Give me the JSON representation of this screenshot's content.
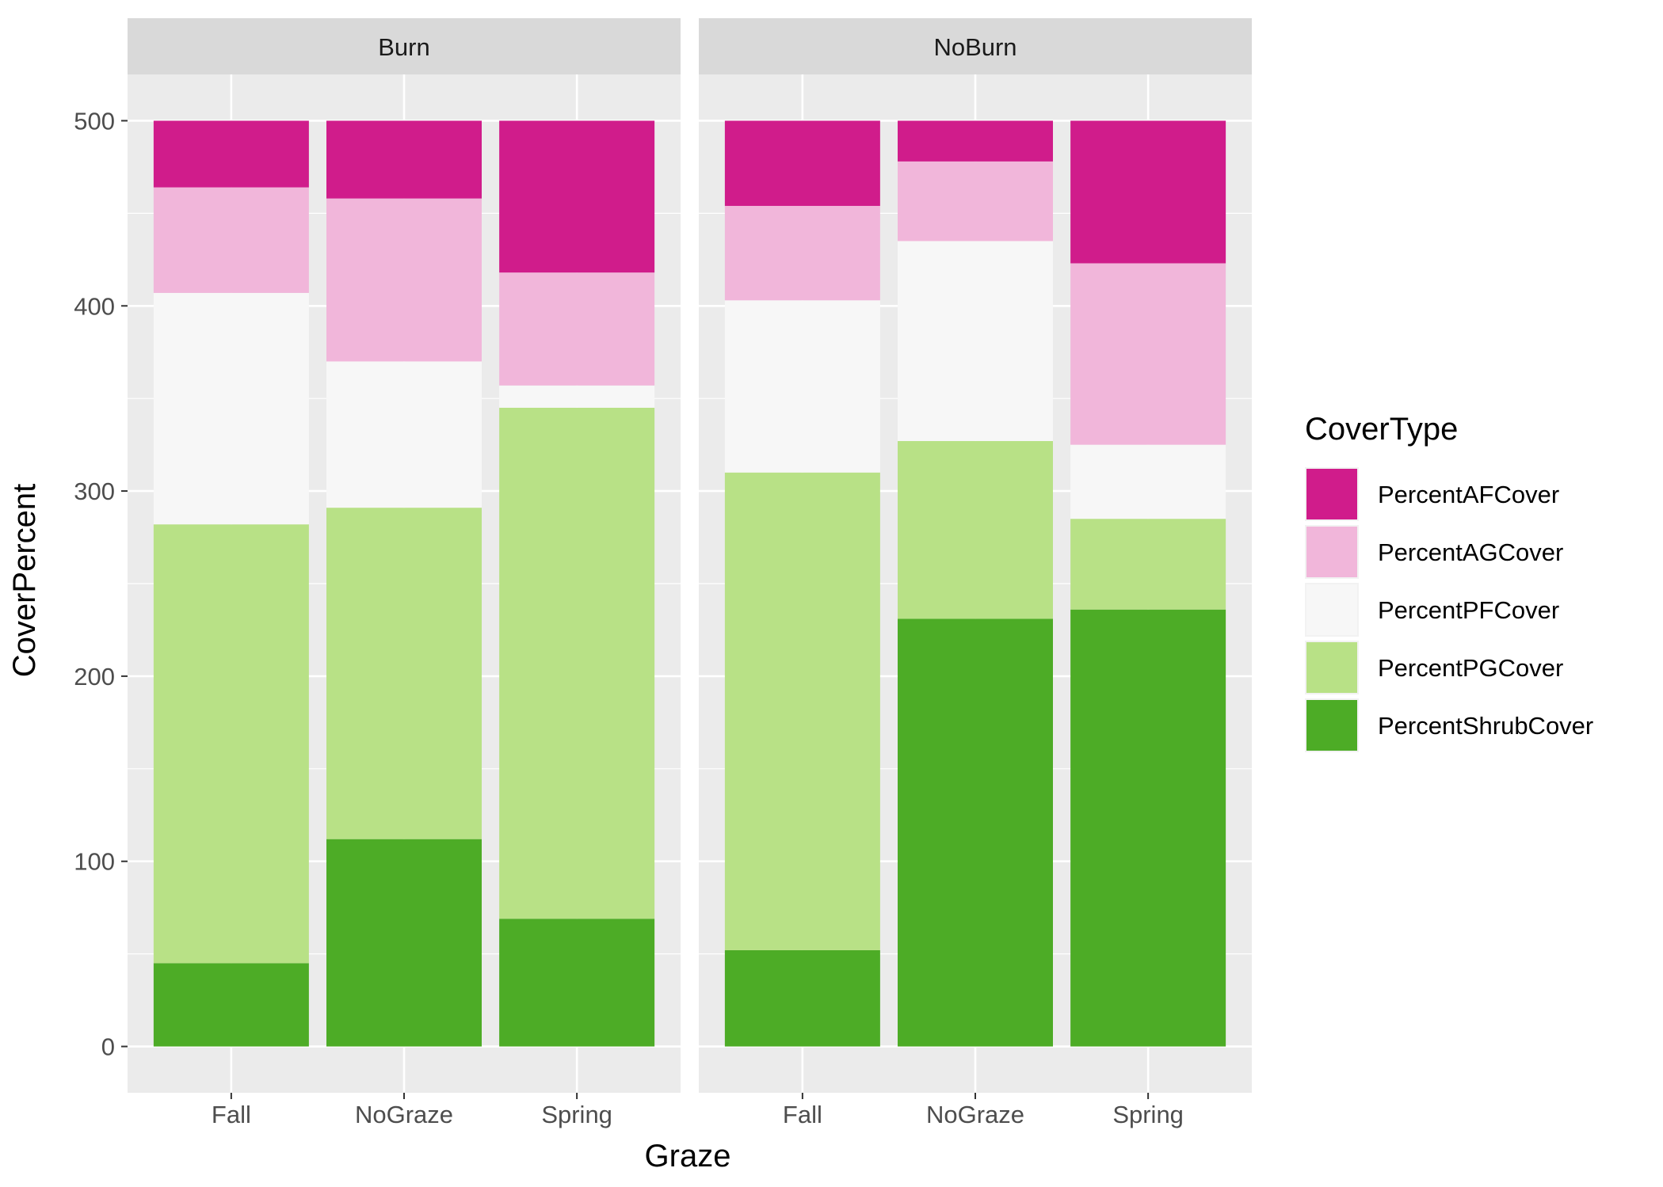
{
  "chart_data": {
    "type": "bar",
    "stacked": true,
    "facet_variable": "Burn",
    "facets": [
      "Burn",
      "NoBurn"
    ],
    "categories": [
      "Fall",
      "NoGraze",
      "Spring"
    ],
    "xlabel": "Graze",
    "ylabel": "CoverPercent",
    "ylim": [
      -25,
      525
    ],
    "yticks": [
      0,
      100,
      200,
      300,
      400,
      500
    ],
    "grid": true,
    "legend": {
      "title": "CoverType",
      "position": "right",
      "entries": [
        "PercentAFCover",
        "PercentAGCover",
        "PercentPFCover",
        "PercentPGCover",
        "PercentShrubCover"
      ]
    },
    "colors": {
      "PercentAFCover": "#d01c8b",
      "PercentAGCover": "#f1b6da",
      "PercentPFCover": "#f7f7f7",
      "PercentPGCover": "#b8e186",
      "PercentShrubCover": "#4dac26"
    },
    "panel_background": "#ebebeb",
    "strip_background": "#d9d9d9",
    "data": {
      "Burn": {
        "Fall": {
          "PercentShrubCover": 45,
          "PercentPGCover": 237,
          "PercentPFCover": 125,
          "PercentAGCover": 57,
          "PercentAFCover": 36
        },
        "NoGraze": {
          "PercentShrubCover": 112,
          "PercentPGCover": 179,
          "PercentPFCover": 79,
          "PercentAGCover": 88,
          "PercentAFCover": 42
        },
        "Spring": {
          "PercentShrubCover": 69,
          "PercentPGCover": 276,
          "PercentPFCover": 12,
          "PercentAGCover": 61,
          "PercentAFCover": 82
        }
      },
      "NoBurn": {
        "Fall": {
          "PercentShrubCover": 52,
          "PercentPGCover": 258,
          "PercentPFCover": 93,
          "PercentAGCover": 51,
          "PercentAFCover": 46
        },
        "NoGraze": {
          "PercentShrubCover": 231,
          "PercentPGCover": 96,
          "PercentPFCover": 108,
          "PercentAGCover": 43,
          "PercentAFCover": 22
        },
        "Spring": {
          "PercentShrubCover": 236,
          "PercentPGCover": 49,
          "PercentPFCover": 40,
          "PercentAGCover": 98,
          "PercentAFCover": 77
        }
      }
    }
  }
}
